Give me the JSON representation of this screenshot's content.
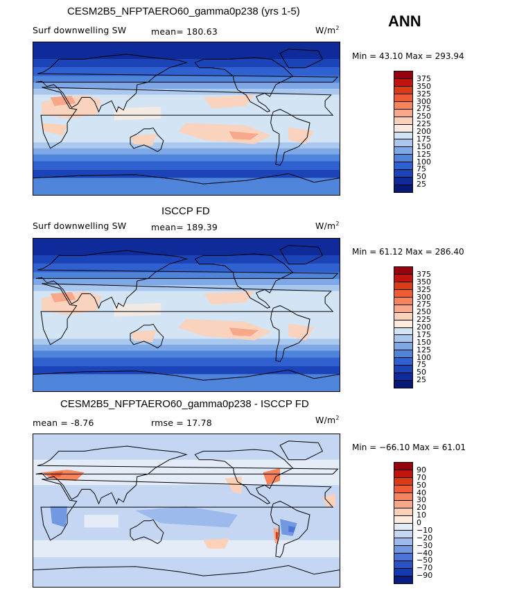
{
  "season": "ANN",
  "panels": [
    {
      "title": "CESM2B5_NFPTAERO60_gamma0p238 (yrs 1-5)",
      "variable": "Surf downwelling SW",
      "stat1": "mean=  180.63",
      "stat2": "",
      "units": "W/m",
      "units_exp": "2",
      "minmax": "Min =   43.10 Max = 293.94",
      "colorbar": {
        "labels": [
          "375",
          "350",
          "325",
          "300",
          "275",
          "250",
          "225",
          "200",
          "175",
          "150",
          "125",
          "100",
          "75",
          "50",
          "25"
        ],
        "colors": [
          "#99000d",
          "#c0140e",
          "#dc3b18",
          "#ef5b35",
          "#f7845a",
          "#f8a88a",
          "#fdd0b8",
          "#fdebe0",
          "#d3e4f5",
          "#aac8ee",
          "#7fa8e6",
          "#4f84db",
          "#2f62d0",
          "#1a44b8",
          "#0f2b9a",
          "#061878"
        ]
      },
      "style": "abs"
    },
    {
      "title": "ISCCP FD",
      "variable": "Surf downwelling SW",
      "stat1": "mean=  189.39",
      "stat2": "",
      "units": "W/m",
      "units_exp": "2",
      "minmax": "Min =  61.12 Max = 286.40",
      "colorbar": {
        "labels": [
          "375",
          "350",
          "325",
          "300",
          "275",
          "250",
          "225",
          "200",
          "175",
          "150",
          "125",
          "100",
          "75",
          "50",
          "25"
        ],
        "colors": [
          "#99000d",
          "#c0140e",
          "#dc3b18",
          "#ef5b35",
          "#f7845a",
          "#f8a88a",
          "#fdd0b8",
          "#fdebe0",
          "#d3e4f5",
          "#aac8ee",
          "#7fa8e6",
          "#4f84db",
          "#2f62d0",
          "#1a44b8",
          "#0f2b9a",
          "#061878"
        ]
      },
      "style": "abs"
    },
    {
      "title": "CESM2B5_NFPTAERO60_gamma0p238 - ISCCP FD",
      "variable": "",
      "stat1": "mean =   -8.76",
      "stat2": "rmse =   17.78",
      "units": "W/m",
      "units_exp": "2",
      "minmax": "Min = −66.10 Max =  61.01",
      "colorbar": {
        "labels": [
          "90",
          "70",
          "50",
          "40",
          "30",
          "20",
          "10",
          "0",
          "−10",
          "−20",
          "−30",
          "−40",
          "−50",
          "−70",
          "−90"
        ],
        "colors": [
          "#99000d",
          "#c0140e",
          "#dc3b18",
          "#ef5b35",
          "#f7845a",
          "#f8a88a",
          "#fdd0b8",
          "#fdebe0",
          "#e4ecf8",
          "#c4d6f2",
          "#9cbbec",
          "#7099e2",
          "#4a74d8",
          "#2a52c6",
          "#143ab0",
          "#081d80"
        ]
      },
      "style": "diff"
    }
  ]
}
